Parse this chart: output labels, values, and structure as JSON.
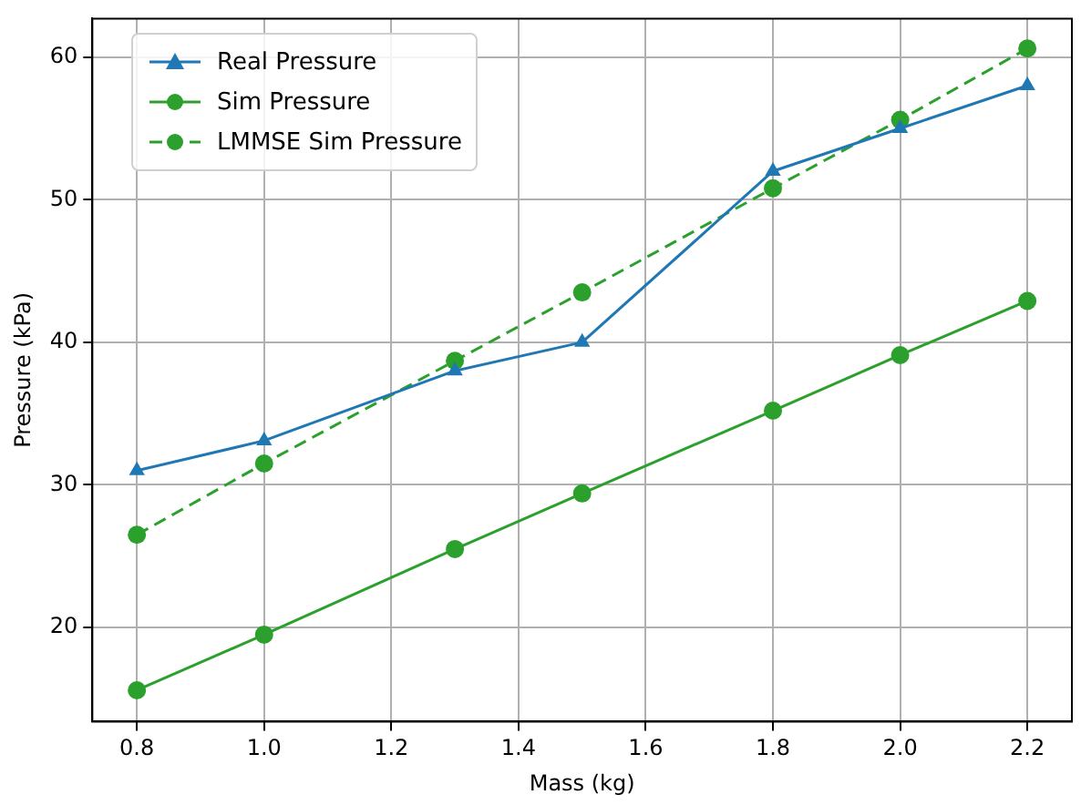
{
  "chart_data": {
    "type": "line",
    "xlabel": "Mass (kg)",
    "ylabel": "Pressure (kPa)",
    "x": [
      0.8,
      1.0,
      1.3,
      1.5,
      1.8,
      2.0,
      2.2
    ],
    "xlim": [
      0.73,
      2.27
    ],
    "xticks": [
      0.8,
      {
        "value": 1,
        "label": "1.0"
      },
      1.2,
      1.4,
      1.6,
      1.8,
      {
        "value": 2,
        "label": "2.0"
      },
      2.2
    ],
    "ylim": [
      13.4,
      62.7
    ],
    "yticks": [
      20,
      30,
      40,
      50,
      60
    ],
    "grid": true,
    "legend": "top left",
    "series": [
      {
        "name": "Real Pressure",
        "color": "#1f77b4",
        "marker": "triangle",
        "line_style": "solid",
        "values": [
          31,
          33.1,
          38,
          40,
          52,
          55,
          58
        ]
      },
      {
        "name": "Sim Pressure",
        "color": "#2ca02c",
        "marker": "circle",
        "line_style": "solid",
        "values": [
          15.6,
          19.5,
          25.5,
          29.4,
          35.2,
          39.1,
          42.9
        ]
      },
      {
        "name": "LMMSE Sim Pressure",
        "color": "#2ca02c",
        "marker": "circle",
        "line_style": "dashed",
        "values": [
          26.5,
          31.5,
          38.7,
          43.5,
          50.8,
          55.6,
          60.6
        ]
      }
    ]
  }
}
